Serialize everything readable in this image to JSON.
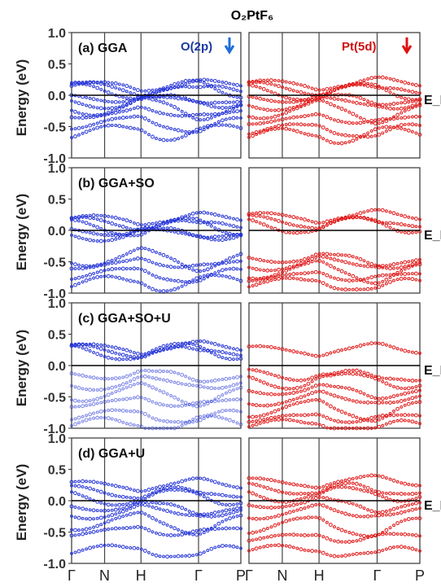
{
  "figure": {
    "title": "O₂PtF₆",
    "y_axis_label": "Energy (eV)",
    "fermi_label": "E_F",
    "left_orbital": "O(2p)",
    "right_orbital": "Pt(5d)",
    "colors": {
      "left": "#1f2fd6",
      "right": "#e01010",
      "arrow_left": "#1f6fd6",
      "arrow_right": "#e01010"
    }
  },
  "chart_data": {
    "type": "scatter",
    "ylim": [
      -1.0,
      1.0
    ],
    "yticks": [
      "1.0",
      "0.5",
      "0.0",
      "-0.5",
      "-1.0"
    ],
    "kpath": [
      "Γ",
      "N",
      "H",
      "Γ",
      "P"
    ],
    "panels": [
      {
        "label": "(a) GGA",
        "left": [
          0.15,
          0.12,
          0.08,
          -0.05,
          -0.12,
          -0.2,
          -0.3,
          -0.45,
          -0.6
        ],
        "right": [
          0.18,
          0.12,
          0.05,
          -0.05,
          -0.15,
          -0.25,
          -0.4,
          -0.55,
          -0.65
        ]
      },
      {
        "label": "(b) GGA+SO",
        "left": [
          0.18,
          0.12,
          0.05,
          -0.02,
          -0.08,
          -0.45,
          -0.55,
          -0.7,
          -0.85
        ],
        "right": [
          0.22,
          0.15,
          0.08,
          -0.45,
          -0.55,
          -0.65,
          -0.75,
          -0.85
        ]
      },
      {
        "label": "(c) GGA+SO+U",
        "left": [
          0.28,
          0.25,
          0.22,
          -0.15,
          -0.3,
          -0.45,
          -0.6,
          -0.8,
          -0.95
        ],
        "right": [
          0.25,
          -0.15,
          -0.25,
          -0.4,
          -0.55,
          -0.7,
          -0.85,
          -0.95
        ]
      },
      {
        "label": "(d) GGA+U",
        "left": [
          0.25,
          0.15,
          0.05,
          -0.1,
          -0.2,
          -0.35,
          -0.5,
          -0.8
        ],
        "right": [
          0.3,
          0.2,
          0.1,
          -0.05,
          -0.2,
          -0.4,
          -0.6,
          -0.8
        ]
      }
    ]
  }
}
